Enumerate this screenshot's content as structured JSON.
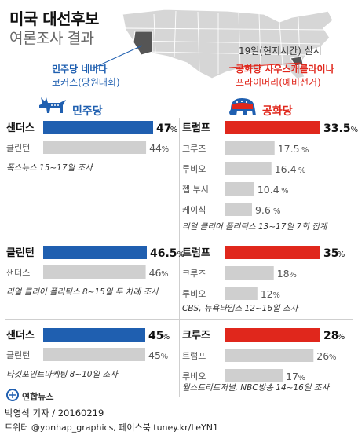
{
  "title": {
    "line1": "미국 대선후보",
    "line2": "여론조사 결과"
  },
  "date_note": "19일(현지시간) 실시",
  "nevada_note": {
    "line1_prefix": "민주당 ",
    "line1_bold": "네바다",
    "line2": "코커스(당원대회)"
  },
  "sc_note": {
    "line1_prefix": "공화당 ",
    "line1_bold": "사우스캐롤라이나",
    "line2": "프라이머리(예비선거)"
  },
  "dem_label": "민주당",
  "rep_label": "공화당",
  "colors": {
    "dem": "#1f5fb0",
    "rep": "#e0271c",
    "grey": "#cfcfcf"
  },
  "chart_data": [
    {
      "type": "bar",
      "party": "민주당",
      "categories": [
        "샌더스",
        "클린턴"
      ],
      "values": [
        47,
        44
      ],
      "source": "폭스뉴스 15~17일 조사"
    },
    {
      "type": "bar",
      "party": "공화당",
      "categories": [
        "트럼프",
        "크루즈",
        "루비오",
        "젭 부시",
        "케이식"
      ],
      "values": [
        33.5,
        17.5,
        16.4,
        10.4,
        9.6
      ],
      "source": "리얼 클리어 폴리틱스 13~17일 7회 집계"
    },
    {
      "type": "bar",
      "party": "민주당",
      "categories": [
        "클린턴",
        "샌더스"
      ],
      "values": [
        46.5,
        46.0
      ],
      "source": "리얼 클리어 폴리틱스 8~15일 두 차례 조사"
    },
    {
      "type": "bar",
      "party": "공화당",
      "categories": [
        "트럼프",
        "크루즈",
        "루비오"
      ],
      "values": [
        35,
        18,
        12
      ],
      "source": "CBS, 뉴욕타임스 12~16일 조사"
    },
    {
      "type": "bar",
      "party": "민주당",
      "categories": [
        "샌더스",
        "클린턴"
      ],
      "values": [
        45,
        45
      ],
      "source": "타깃포인트마케팅 8~10일 조사"
    },
    {
      "type": "bar",
      "party": "공화당",
      "categories": [
        "크루즈",
        "트럼프",
        "루비오"
      ],
      "values": [
        28,
        26,
        17
      ],
      "source": "월스트리트저널, NBC방송 14~16일 조사"
    }
  ],
  "logo": "연합뉴스",
  "footer": {
    "byline": "박영석 기자 / 20160219",
    "sns": "트위터 @yonhap_graphics, 페이스북 tuney.kr/LeYN1"
  }
}
